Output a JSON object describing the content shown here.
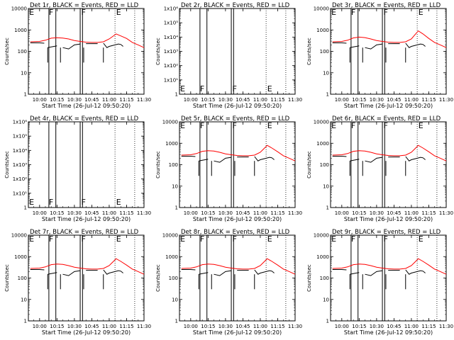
{
  "figure": {
    "panels": [
      {
        "title": "Det 1r, BLACK = Events, RED = LLD",
        "empty": false,
        "yticks": [
          "1",
          "10",
          "100",
          "1000",
          "10000"
        ],
        "markers": [
          "E",
          "F",
          "F",
          "E"
        ],
        "red_peak": 500
      },
      {
        "title": "Det 2r, BLACK = Events, RED = LLD",
        "empty": true,
        "yticks": [
          "1",
          "1x10¹",
          "1x10²",
          "1x10³",
          "1x10⁴",
          "1x10⁵",
          "1x10⁶"
        ],
        "markers": [
          "E",
          "F",
          "F",
          "E"
        ]
      },
      {
        "title": "Det 3r, BLACK = Events, RED = LLD",
        "empty": false,
        "yticks": [
          "1",
          "10",
          "100",
          "1000",
          "10000"
        ],
        "markers": [
          "E",
          "F",
          "F",
          "E"
        ],
        "red_peak": 1000
      },
      {
        "title": "Det 4r, BLACK = Events, RED = LLD",
        "empty": true,
        "yticks": [
          "1",
          "1x10¹",
          "1x10²",
          "1x10³",
          "1x10⁴",
          "1x10⁵",
          "1x10⁶"
        ],
        "markers": [
          "E",
          "F",
          "F",
          "E"
        ]
      },
      {
        "title": "Det 5r, BLACK = Events, RED = LLD",
        "empty": false,
        "yticks": [
          "1",
          "10",
          "100",
          "1000",
          "10000"
        ],
        "markers": [
          "E",
          "F",
          "F",
          "E"
        ],
        "red_peak": 800
      },
      {
        "title": "Det 6r, BLACK = Events, RED = LLD",
        "empty": false,
        "yticks": [
          "1",
          "10",
          "100",
          "1000",
          "10000"
        ],
        "markers": [
          "E",
          "F",
          "F",
          "E"
        ],
        "red_peak": 800
      },
      {
        "title": "Det 7r, BLACK = Events, RED = LLD",
        "empty": false,
        "yticks": [
          "1",
          "10",
          "100",
          "1000",
          "10000"
        ],
        "markers": [
          "E",
          "F",
          "F",
          "E"
        ],
        "red_peak": 800
      },
      {
        "title": "Det 8r, BLACK = Events, RED = LLD",
        "empty": false,
        "yticks": [
          "1",
          "10",
          "100",
          "1000",
          "10000"
        ],
        "markers": [
          "E",
          "F",
          "F",
          "E"
        ],
        "red_peak": 800
      },
      {
        "title": "Det 9r, BLACK = Events, RED = LLD",
        "empty": false,
        "yticks": [
          "1",
          "10",
          "100",
          "1000",
          "10000"
        ],
        "markers": [
          "E",
          "F",
          "F",
          "E"
        ],
        "red_peak": 800
      }
    ],
    "xlabel": "Start Time (26-Jul-12 09:50:20)",
    "ylabel": "Counts/sec",
    "xticks": [
      "10:00",
      "10:15",
      "10:30",
      "10:45",
      "11:00",
      "11:15",
      "11:30"
    ],
    "colors": {
      "events": "#000000",
      "lld": "#ff0000",
      "axes": "#000000",
      "background": "#ffffff"
    }
  },
  "chart_data": {
    "type": "line",
    "x_range": [
      "09:50:20",
      "11:30"
    ],
    "y_scale": "log",
    "y_range": [
      1,
      10000
    ],
    "x_ticks": [
      "10:00",
      "10:15",
      "10:30",
      "10:45",
      "11:00",
      "11:15",
      "11:30"
    ],
    "vertical_lines_solid": [
      "10:08",
      "10:14",
      "10:35",
      "10:37"
    ],
    "vertical_lines_dotted": [
      "11:05",
      "11:22"
    ],
    "events_breaks": [
      "10:07",
      "10:18",
      "10:38",
      "10:55"
    ],
    "series": [
      {
        "name": "BLACK = Events",
        "color": "#000000",
        "x": [
          "09:52",
          "10:00",
          "10:04",
          "10:07",
          "10:10",
          "10:15",
          "10:20",
          "10:25",
          "10:30",
          "10:35",
          "10:40",
          "10:45",
          "10:50",
          "10:55",
          "10:58",
          "11:00",
          "11:05",
          "11:08",
          "11:10",
          "11:12"
        ],
        "y": [
          250,
          250,
          240,
          150,
          160,
          180,
          150,
          130,
          200,
          220,
          230,
          230,
          230,
          240,
          150,
          170,
          200,
          220,
          210,
          170
        ]
      },
      {
        "name": "RED = LLD",
        "color": "#ff0000",
        "x": [
          "09:52",
          "10:00",
          "10:05",
          "10:10",
          "10:15",
          "10:20",
          "10:25",
          "10:30",
          "10:35",
          "10:40",
          "10:45",
          "10:50",
          "10:55",
          "11:00",
          "11:03",
          "11:06",
          "11:10",
          "11:15",
          "11:20",
          "11:25",
          "11:30"
        ],
        "y": [
          280,
          290,
          330,
          420,
          450,
          430,
          380,
          320,
          290,
          270,
          260,
          260,
          280,
          380,
          550,
          800,
          600,
          400,
          260,
          200,
          150
        ]
      }
    ]
  }
}
